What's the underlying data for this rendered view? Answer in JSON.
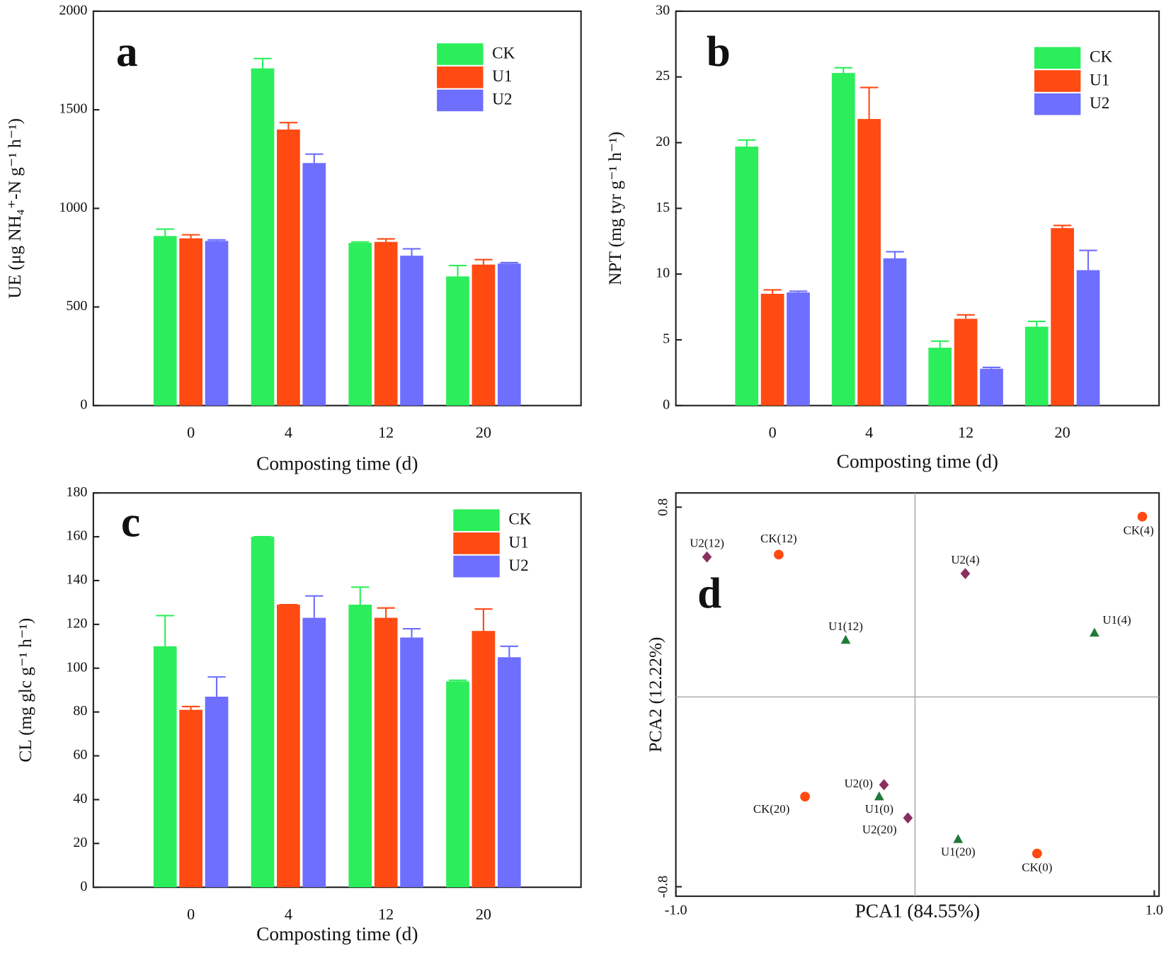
{
  "chart_data": [
    {
      "type": "bar",
      "annotation": "a",
      "ylabel": "UE (μg NH₄⁺-N g⁻¹ h⁻¹)",
      "xlabel": "Composting time (d)",
      "categories": [
        "0",
        "4",
        "12",
        "20"
      ],
      "ylim": [
        0,
        2000
      ],
      "yticks": [
        0,
        500,
        1000,
        1500,
        2000
      ],
      "series": [
        {
          "name": "CK",
          "color": "#2cee5a",
          "values": [
            860,
            1710,
            825,
            655
          ],
          "errors": [
            35,
            50,
            5,
            55
          ]
        },
        {
          "name": "U1",
          "color": "#ff4a12",
          "values": [
            848,
            1400,
            830,
            715
          ],
          "errors": [
            18,
            35,
            15,
            25
          ]
        },
        {
          "name": "U2",
          "color": "#6e6eff",
          "values": [
            835,
            1230,
            760,
            720
          ],
          "errors": [
            5,
            45,
            35,
            5
          ]
        }
      ]
    },
    {
      "type": "bar",
      "annotation": "b",
      "ylabel": "NPT (mg tyr g⁻¹ h⁻¹)",
      "xlabel": "Composting time (d)",
      "categories": [
        "0",
        "4",
        "12",
        "20"
      ],
      "ylim": [
        0,
        30
      ],
      "yticks": [
        0,
        5,
        10,
        15,
        20,
        25,
        30
      ],
      "series": [
        {
          "name": "CK",
          "color": "#2cee5a",
          "values": [
            19.7,
            25.3,
            4.4,
            6.0
          ],
          "errors": [
            0.5,
            0.4,
            0.5,
            0.4
          ]
        },
        {
          "name": "U1",
          "color": "#ff4a12",
          "values": [
            8.5,
            21.8,
            6.6,
            13.5
          ],
          "errors": [
            0.3,
            2.4,
            0.3,
            0.2
          ]
        },
        {
          "name": "U2",
          "color": "#6e6eff",
          "values": [
            8.6,
            11.2,
            2.8,
            10.3
          ],
          "errors": [
            0.1,
            0.5,
            0.1,
            1.5
          ]
        }
      ]
    },
    {
      "type": "bar",
      "annotation": "c",
      "ylabel": "CL (mg glc g⁻¹ h⁻¹)",
      "xlabel": "Composting time (d)",
      "categories": [
        "0",
        "4",
        "12",
        "20"
      ],
      "ylim": [
        0,
        180
      ],
      "yticks": [
        0,
        20,
        40,
        60,
        80,
        100,
        120,
        140,
        160,
        180
      ],
      "series": [
        {
          "name": "CK",
          "color": "#2cee5a",
          "values": [
            110,
            160,
            129,
            94
          ],
          "errors": [
            14,
            0,
            8,
            0.5
          ]
        },
        {
          "name": "U1",
          "color": "#ff4a12",
          "values": [
            81,
            129,
            123,
            117
          ],
          "errors": [
            1.5,
            0,
            4.5,
            10
          ]
        },
        {
          "name": "U2",
          "color": "#6e6eff",
          "values": [
            87,
            123,
            114,
            105
          ],
          "errors": [
            9,
            10,
            4,
            5
          ]
        }
      ]
    },
    {
      "type": "scatter",
      "annotation": "d",
      "xlabel": "PCA1 (84.55%)",
      "ylabel": "PCA2 (12.22%)",
      "xlim": [
        -1,
        1.02
      ],
      "ylim": [
        -0.84,
        0.86
      ],
      "crosshair": true,
      "xticks": [
        {
          "value": -1,
          "label": "-1.0"
        },
        {
          "value": 1,
          "label": "1.0"
        }
      ],
      "yticks": [
        {
          "value": -0.8,
          "label": "-0.8"
        },
        {
          "value": 0.8,
          "label": "0.8"
        }
      ],
      "series": [
        {
          "marker": "circle",
          "color": "#ff4a12",
          "labels": [
            "CK(12)",
            "CK(4)",
            "CK(20)",
            "CK(0)"
          ],
          "x": [
            -0.57,
            0.95,
            -0.46,
            0.51
          ],
          "values": [
            0.6,
            0.76,
            -0.42,
            -0.66
          ]
        },
        {
          "marker": "triangle",
          "color": "#1f7a3a",
          "labels": [
            "U1(12)",
            "U1(4)",
            "U1(0)",
            "U1(20)"
          ],
          "x": [
            -0.29,
            0.75,
            -0.15,
            0.18
          ],
          "values": [
            0.24,
            0.27,
            -0.42,
            -0.6
          ]
        },
        {
          "marker": "diamond",
          "color": "#8b2f5f",
          "labels": [
            "U2(12)",
            "U2(4)",
            "U2(0)",
            "U2(20)"
          ],
          "x": [
            -0.87,
            0.21,
            -0.13,
            -0.03
          ],
          "values": [
            0.59,
            0.52,
            -0.37,
            -0.51
          ]
        }
      ]
    }
  ]
}
